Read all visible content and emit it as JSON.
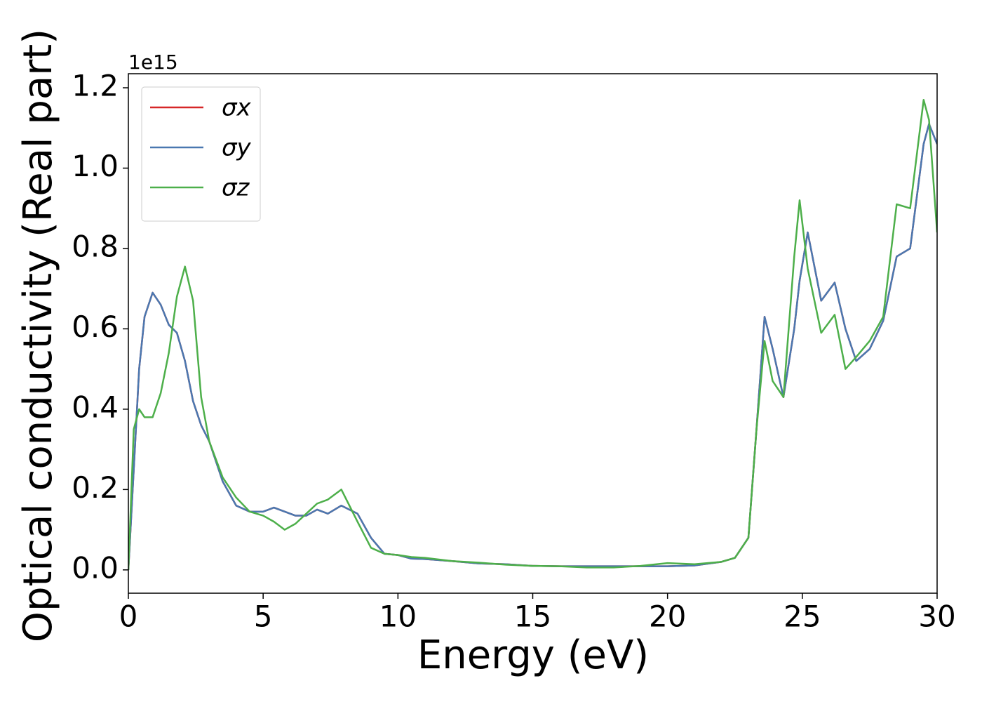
{
  "chart_data": {
    "type": "line",
    "x_label": "Energy (eV)",
    "y_label": "Optical conductivity (Real part)",
    "y_offset_label": "1e15",
    "x": [
      0,
      0.2,
      0.4,
      0.6,
      0.9,
      1.2,
      1.5,
      1.8,
      2.1,
      2.4,
      2.7,
      3.0,
      3.5,
      4,
      4.5,
      5,
      5.4,
      5.8,
      6.2,
      6.6,
      7,
      7.4,
      7.9,
      8.5,
      9,
      9.5,
      10,
      10.5,
      11,
      12,
      13,
      14,
      15,
      16,
      17,
      18,
      19,
      20,
      21,
      22,
      22.5,
      23,
      23.3,
      23.6,
      23.9,
      24.3,
      24.7,
      24.9,
      25.2,
      25.7,
      26.2,
      26.6,
      27,
      27.5,
      28,
      28.5,
      29,
      29.5,
      29.7,
      30
    ],
    "series": [
      {
        "name": "σx",
        "color": "#d62728",
        "values": [
          0,
          0.25,
          0.5,
          0.63,
          0.69,
          0.66,
          0.61,
          0.59,
          0.52,
          0.42,
          0.36,
          0.32,
          0.22,
          0.16,
          0.145,
          0.145,
          0.155,
          0.145,
          0.135,
          0.135,
          0.15,
          0.14,
          0.16,
          0.14,
          0.08,
          0.04,
          0.037,
          0.028,
          0.027,
          0.022,
          0.016,
          0.014,
          0.01,
          0.009,
          0.009,
          0.009,
          0.009,
          0.009,
          0.011,
          0.02,
          0.03,
          0.08,
          0.35,
          0.63,
          0.55,
          0.43,
          0.6,
          0.72,
          0.84,
          0.67,
          0.715,
          0.6,
          0.52,
          0.55,
          0.62,
          0.78,
          0.8,
          1.06,
          1.11,
          1.06
        ]
      },
      {
        "name": "σy",
        "color": "#4a78b0",
        "values": [
          0,
          0.25,
          0.5,
          0.63,
          0.69,
          0.66,
          0.61,
          0.59,
          0.52,
          0.42,
          0.36,
          0.32,
          0.22,
          0.16,
          0.145,
          0.145,
          0.155,
          0.145,
          0.135,
          0.135,
          0.15,
          0.14,
          0.16,
          0.14,
          0.08,
          0.04,
          0.037,
          0.028,
          0.027,
          0.022,
          0.016,
          0.014,
          0.01,
          0.009,
          0.009,
          0.009,
          0.009,
          0.009,
          0.011,
          0.02,
          0.03,
          0.08,
          0.35,
          0.63,
          0.55,
          0.43,
          0.6,
          0.72,
          0.84,
          0.67,
          0.715,
          0.6,
          0.52,
          0.55,
          0.62,
          0.78,
          0.8,
          1.06,
          1.11,
          1.06
        ]
      },
      {
        "name": "σz",
        "color": "#4daf4a",
        "values": [
          0,
          0.35,
          0.4,
          0.38,
          0.38,
          0.44,
          0.54,
          0.68,
          0.755,
          0.67,
          0.43,
          0.32,
          0.23,
          0.18,
          0.145,
          0.135,
          0.12,
          0.1,
          0.115,
          0.14,
          0.165,
          0.175,
          0.2,
          0.12,
          0.055,
          0.04,
          0.037,
          0.032,
          0.03,
          0.022,
          0.018,
          0.013,
          0.01,
          0.009,
          0.006,
          0.006,
          0.01,
          0.017,
          0.014,
          0.02,
          0.03,
          0.08,
          0.35,
          0.57,
          0.47,
          0.43,
          0.78,
          0.92,
          0.75,
          0.59,
          0.635,
          0.5,
          0.53,
          0.57,
          0.63,
          0.91,
          0.9,
          1.17,
          1.12,
          0.84
        ]
      }
    ],
    "xlim": [
      0,
      30
    ],
    "xticks": [
      0,
      5,
      10,
      15,
      20,
      25,
      30
    ],
    "ylim": [
      -0.058,
      1.235
    ],
    "yticks": [
      {
        "value": 0,
        "label": "0.0"
      },
      0.2,
      0.4,
      0.6,
      0.8,
      {
        "value": 1,
        "label": "1.0"
      },
      1.2
    ],
    "grid": false,
    "legend": "upper left"
  }
}
